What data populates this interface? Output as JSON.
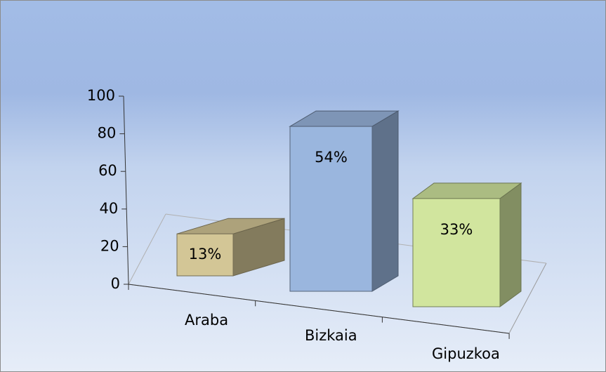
{
  "chart_data": {
    "type": "bar3d",
    "categories": [
      "Araba",
      "Bizkaia",
      "Gipuzkoa"
    ],
    "values": [
      13,
      54,
      33
    ],
    "value_labels": [
      "13%",
      "54%",
      "33%"
    ],
    "colors": [
      "#d3c696",
      "#9ab6de",
      "#d1e59e"
    ],
    "ylim": [
      0,
      100
    ],
    "yticks": [
      0,
      20,
      40,
      60,
      80,
      100
    ]
  }
}
